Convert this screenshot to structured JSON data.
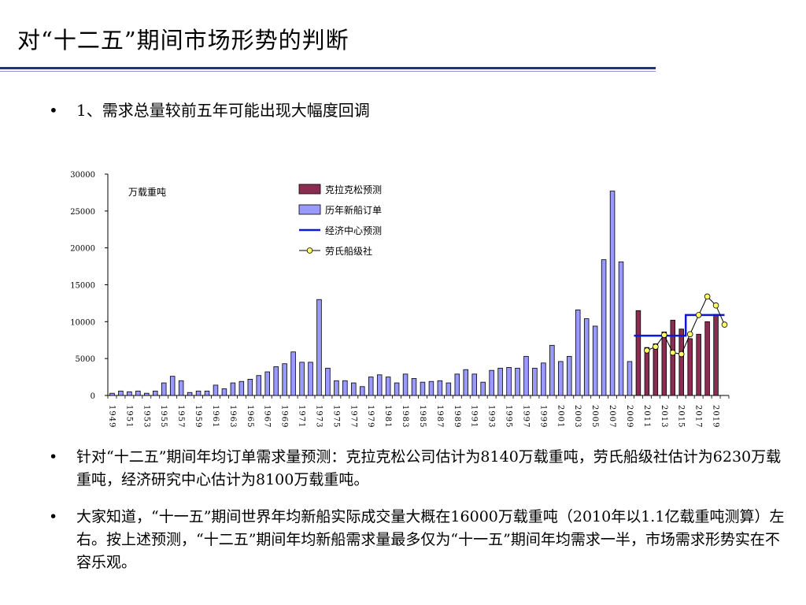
{
  "slide": {
    "title": "对“十二五”期间市场形势的判断",
    "bullet_symbol": "•",
    "bullet1": "1、需求总量较前五年可能出现大幅度回调",
    "bullet2": "针对“十二五”期间年均订单需求量预测：克拉克松公司估计为8140万载重吨，劳氏船级社估计为6230万载重吨，经济研究中心估计为8100万载重吨。",
    "bullet3": "大家知道，“十一五”期间世界年均新船实际成交量大概在16000万载重吨（2010年以1.1亿载重吨测算）左右。按上述预测，“十二五”期间年均新船需求量最多仅为“十一五”期间年均需求一半，市场需求形势实在不容乐观。"
  },
  "chart_data": {
    "type": "bar",
    "unit_label": "万载重吨",
    "ylim": [
      0,
      30000
    ],
    "yticks": [
      0,
      5000,
      10000,
      15000,
      20000,
      25000,
      30000
    ],
    "x_tick_labels": [
      "1949",
      "1951",
      "1953",
      "1955",
      "1957",
      "1959",
      "1961",
      "1963",
      "1965",
      "1967",
      "1969",
      "1971",
      "1973",
      "1975",
      "1977",
      "1979",
      "1981",
      "1983",
      "1985",
      "1987",
      "1989",
      "1991",
      "1993",
      "1995",
      "1997",
      "1999",
      "2001",
      "2003",
      "2005",
      "2007",
      "2009",
      "2011",
      "2013",
      "2015",
      "2017",
      "2019"
    ],
    "years": [
      1949,
      1950,
      1951,
      1952,
      1953,
      1954,
      1955,
      1956,
      1957,
      1958,
      1959,
      1960,
      1961,
      1962,
      1963,
      1964,
      1965,
      1966,
      1967,
      1968,
      1969,
      1970,
      1971,
      1972,
      1973,
      1974,
      1975,
      1976,
      1977,
      1978,
      1979,
      1980,
      1981,
      1982,
      1983,
      1984,
      1985,
      1986,
      1987,
      1988,
      1989,
      1990,
      1991,
      1992,
      1993,
      1994,
      1995,
      1996,
      1997,
      1998,
      1999,
      2000,
      2001,
      2002,
      2003,
      2004,
      2005,
      2006,
      2007,
      2008,
      2009,
      2010,
      2011,
      2012,
      2013,
      2014,
      2015,
      2016,
      2017,
      2018,
      2019,
      2020
    ],
    "legend": {
      "clarksons": "克拉克松预测",
      "historical": "历年新船订单",
      "erc": "经济中心预测",
      "lloyds": "劳氏船级社"
    },
    "colors": {
      "clarksons": "#8b2d52",
      "historical": "#9999ff",
      "erc": "#0a1ad8",
      "lloyds_marker": "#ffff66"
    },
    "series": [
      {
        "key": "historical",
        "type": "bar",
        "points": [
          [
            1949,
            300
          ],
          [
            1950,
            600
          ],
          [
            1951,
            500
          ],
          [
            1952,
            600
          ],
          [
            1953,
            300
          ],
          [
            1954,
            600
          ],
          [
            1955,
            1700
          ],
          [
            1956,
            2600
          ],
          [
            1957,
            2000
          ],
          [
            1958,
            400
          ],
          [
            1959,
            600
          ],
          [
            1960,
            600
          ],
          [
            1961,
            1400
          ],
          [
            1962,
            900
          ],
          [
            1963,
            1700
          ],
          [
            1964,
            1900
          ],
          [
            1965,
            2200
          ],
          [
            1966,
            2700
          ],
          [
            1967,
            3200
          ],
          [
            1968,
            3900
          ],
          [
            1969,
            4300
          ],
          [
            1970,
            5900
          ],
          [
            1971,
            4500
          ],
          [
            1972,
            4500
          ],
          [
            1973,
            13000
          ],
          [
            1974,
            3700
          ],
          [
            1975,
            2000
          ],
          [
            1976,
            2000
          ],
          [
            1977,
            1700
          ],
          [
            1978,
            1200
          ],
          [
            1979,
            2500
          ],
          [
            1980,
            2800
          ],
          [
            1981,
            2500
          ],
          [
            1982,
            1700
          ],
          [
            1983,
            2900
          ],
          [
            1984,
            2300
          ],
          [
            1985,
            1800
          ],
          [
            1986,
            1900
          ],
          [
            1987,
            2000
          ],
          [
            1988,
            1700
          ],
          [
            1989,
            2900
          ],
          [
            1990,
            3500
          ],
          [
            1991,
            2900
          ],
          [
            1992,
            1800
          ],
          [
            1993,
            3400
          ],
          [
            1994,
            3700
          ],
          [
            1995,
            3800
          ],
          [
            1996,
            3700
          ],
          [
            1997,
            5300
          ],
          [
            1998,
            3700
          ],
          [
            1999,
            4400
          ],
          [
            2000,
            6800
          ],
          [
            2001,
            4600
          ],
          [
            2002,
            5300
          ],
          [
            2003,
            11600
          ],
          [
            2004,
            10400
          ],
          [
            2005,
            9400
          ],
          [
            2006,
            18400
          ],
          [
            2007,
            27700
          ],
          [
            2008,
            18100
          ],
          [
            2009,
            4600
          ]
        ]
      },
      {
        "key": "clarksons",
        "type": "bar",
        "points": [
          [
            2010,
            11500
          ],
          [
            2011,
            6500
          ],
          [
            2012,
            7000
          ],
          [
            2013,
            8600
          ],
          [
            2014,
            10200
          ],
          [
            2015,
            9000
          ],
          [
            2016,
            7700
          ],
          [
            2017,
            8300
          ],
          [
            2018,
            10000
          ],
          [
            2019,
            11000
          ]
        ]
      },
      {
        "key": "erc",
        "type": "line",
        "points": [
          [
            2010,
            8100
          ],
          [
            2011,
            8100
          ],
          [
            2012,
            8100
          ],
          [
            2013,
            8100
          ],
          [
            2014,
            8100
          ],
          [
            2015,
            8100
          ],
          [
            2016,
            10900
          ],
          [
            2017,
            10900
          ],
          [
            2018,
            10900
          ],
          [
            2019,
            10900
          ],
          [
            2020,
            10900
          ]
        ]
      },
      {
        "key": "lloyds",
        "type": "line",
        "points": [
          [
            2011,
            6100
          ],
          [
            2012,
            6600
          ],
          [
            2013,
            8200
          ],
          [
            2014,
            5800
          ],
          [
            2015,
            5600
          ],
          [
            2016,
            8300
          ],
          [
            2017,
            10900
          ],
          [
            2018,
            13400
          ],
          [
            2019,
            12200
          ],
          [
            2020,
            9600
          ]
        ]
      }
    ]
  }
}
